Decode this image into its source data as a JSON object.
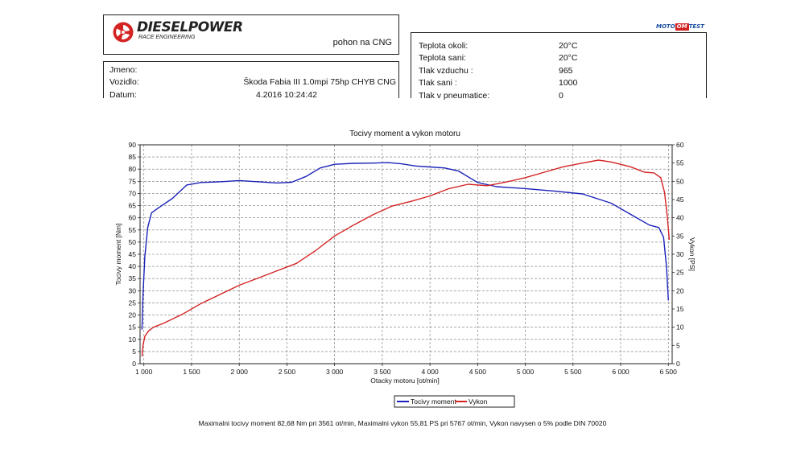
{
  "header": {
    "brand_name": "DIESELPOWER",
    "brand_sub": "RACE ENGINEERING",
    "fuel": "pohon na CNG",
    "partner_logo": [
      "MOTO",
      "OM",
      "TEST"
    ]
  },
  "info": {
    "rows": [
      {
        "label": "Jmeno:",
        "value": ""
      },
      {
        "label": "Vozidlo:",
        "value": "Škoda Fabia III 1.0mpi 75hp CHYB CNG"
      },
      {
        "label": "Datum:",
        "value": "4.2016 10:24:42"
      }
    ]
  },
  "environment": {
    "rows": [
      {
        "label": "Teplota okoli:",
        "value": "20°C"
      },
      {
        "label": "Teplota sani:",
        "value": "20°C"
      },
      {
        "label": "Tlak vzduchu :",
        "value": "965"
      },
      {
        "label": "Tlak sani :",
        "value": "1000"
      },
      {
        "label": "Tlak v pneumatice:",
        "value": "0"
      }
    ]
  },
  "colors": {
    "torque": "#1a22b8",
    "power": "#d42323"
  },
  "chart_data": {
    "type": "line",
    "title": "Tocivy moment a vykon motoru",
    "xlabel": "Otacky motoru [ot/min]",
    "ylabel_left": "Tocivy moment [Nm]",
    "ylabel_right": "Vykon [PS]",
    "xlim": [
      960,
      6540
    ],
    "ylim_left": [
      0,
      90
    ],
    "ylim_right": [
      0,
      60
    ],
    "x_ticks": [
      1000,
      1500,
      2000,
      2500,
      3000,
      3500,
      4000,
      4500,
      5000,
      5500,
      6000,
      6500
    ],
    "x_tick_labels": [
      "1 000",
      "1 500",
      "2 000",
      "2 500",
      "3 000",
      "3 500",
      "4 000",
      "4 500",
      "5 000",
      "5 500",
      "6 000",
      "6 500"
    ],
    "y_left_ticks": [
      0,
      5,
      10,
      15,
      20,
      25,
      30,
      35,
      40,
      45,
      50,
      55,
      60,
      65,
      70,
      75,
      80,
      85,
      90
    ],
    "y_right_ticks": [
      0,
      5,
      10,
      15,
      20,
      25,
      30,
      35,
      40,
      45,
      50,
      55,
      60
    ],
    "grid": true,
    "legend": "bottom-center",
    "series": [
      {
        "name": "Tocivy moment",
        "axis": "left",
        "x": [
          980,
          990,
          1010,
          1040,
          1080,
          1150,
          1300,
          1450,
          1600,
          1800,
          2000,
          2200,
          2400,
          2550,
          2700,
          2850,
          3000,
          3200,
          3400,
          3561,
          3700,
          3850,
          4000,
          4150,
          4300,
          4500,
          4700,
          5000,
          5300,
          5600,
          5900,
          6100,
          6300,
          6400,
          6450,
          6480,
          6500
        ],
        "values": [
          14,
          28,
          44,
          56,
          62,
          64,
          68,
          73.5,
          74.5,
          74.8,
          75.3,
          74.8,
          74.3,
          74.6,
          77,
          80.5,
          82,
          82.4,
          82.5,
          82.68,
          82.2,
          81.3,
          80.9,
          80.5,
          79.2,
          74.5,
          72.8,
          72,
          71,
          69.8,
          66,
          61.5,
          57,
          56,
          52,
          40,
          26
        ]
      },
      {
        "name": "Vykon",
        "axis": "right",
        "x": [
          980,
          990,
          1010,
          1050,
          1100,
          1200,
          1400,
          1600,
          1800,
          2000,
          2200,
          2400,
          2600,
          2800,
          3000,
          3200,
          3400,
          3600,
          3800,
          4000,
          4200,
          4400,
          4600,
          4800,
          5000,
          5200,
          5400,
          5600,
          5767,
          5900,
          6100,
          6250,
          6350,
          6420,
          6460,
          6490,
          6510
        ],
        "values": [
          2,
          5,
          7.5,
          9,
          10,
          11,
          13.5,
          16.5,
          19,
          21.5,
          23.5,
          25.5,
          27.5,
          31,
          35,
          38,
          40.8,
          43.2,
          44.5,
          46,
          48,
          49.2,
          48.8,
          49.8,
          51,
          52.5,
          54,
          55,
          55.81,
          55.3,
          54,
          52.5,
          52.3,
          51,
          47,
          40,
          34
        ]
      }
    ]
  },
  "footer": "Maximalni tocivy moment 82,68 Nm pri 3561 ot/min,  Maximalni vykon 55,81 PS pri 5767 ot/min,  Vykon navysen o 5% podle DIN 70020"
}
